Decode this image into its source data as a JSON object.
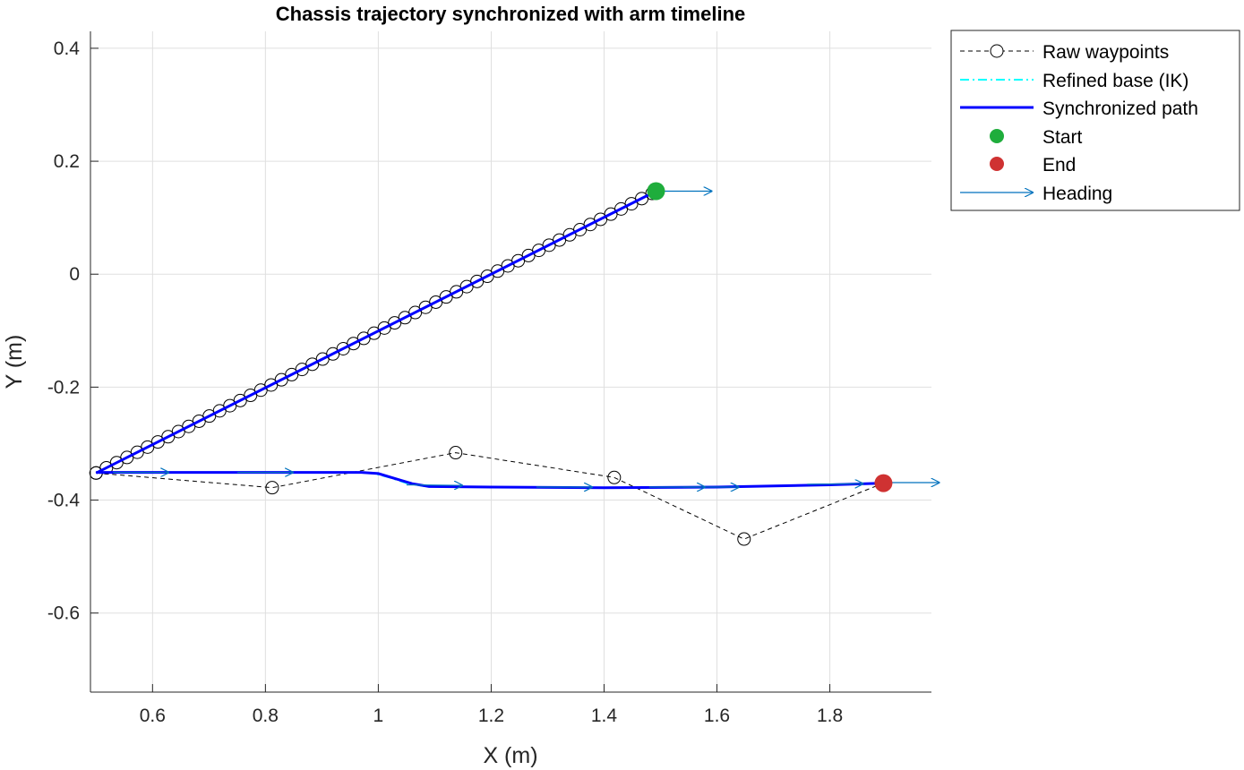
{
  "chart_data": {
    "type": "line",
    "title": "Chassis trajectory synchronized with arm timeline",
    "xlabel": "X (m)",
    "ylabel": "Y (m)",
    "xlim": [
      0.49,
      1.98
    ],
    "ylim": [
      -0.74,
      0.43
    ],
    "xticks": [
      0.6,
      0.8,
      1,
      1.2,
      1.4,
      1.6,
      1.8
    ],
    "xtick_labels": [
      "0.6",
      "0.8",
      "1",
      "1.2",
      "1.4",
      "1.6",
      "1.8"
    ],
    "yticks": [
      0.4,
      0.2,
      0,
      -0.2,
      -0.4,
      -0.6
    ],
    "ytick_labels": [
      "0.4",
      "0.2",
      "0",
      "-0.2",
      "-0.4",
      "-0.6"
    ],
    "grid": true,
    "legend_position": "outside-top-right",
    "legend": [
      "Raw waypoints",
      "Refined base (IK)",
      "Synchronized path",
      "Start",
      "End",
      "Heading"
    ],
    "colors": {
      "raw": "#000000",
      "refined": "#00ffff",
      "synchronized": "#0000ff",
      "start": "#1fad3c",
      "end": "#cf3232",
      "heading": "#0072bd",
      "grid": "#dfdfdf",
      "axis": "#262626"
    },
    "series": [
      {
        "name": "Raw waypoints",
        "style": "dashed-black-circles",
        "segments": [
          {
            "line": "line",
            "x0": 0.5,
            "y0": -0.352,
            "x1": 1.485,
            "y1": 0.143,
            "count": 55
          },
          {
            "line": "points",
            "x": [
              0.5,
              0.812,
              1.137,
              1.418,
              1.648,
              1.895
            ],
            "y": [
              -0.352,
              -0.378,
              -0.316,
              -0.36,
              -0.469,
              -0.37
            ]
          }
        ]
      },
      {
        "name": "Refined base (IK)",
        "style": "cyan-dashdot",
        "x": [
          0.5,
          0.8,
          0.95,
          0.99,
          1.02,
          1.05,
          1.08,
          1.2,
          1.4,
          1.6,
          1.8,
          1.895
        ],
        "y": [
          -0.351,
          -0.351,
          -0.351,
          -0.352,
          -0.36,
          -0.37,
          -0.375,
          -0.377,
          -0.378,
          -0.377,
          -0.373,
          -0.37
        ]
      },
      {
        "name": "Synchronized path",
        "style": "blue-solid",
        "segments": [
          {
            "x": [
              0.5,
              1.492
            ],
            "y": [
              -0.352,
              0.147
            ]
          },
          {
            "x": [
              0.5,
              0.8,
              0.97,
              1.0,
              1.03,
              1.06,
              1.09,
              1.2,
              1.4,
              1.6,
              1.8,
              1.895
            ],
            "y": [
              -0.351,
              -0.351,
              -0.351,
              -0.353,
              -0.362,
              -0.371,
              -0.376,
              -0.377,
              -0.378,
              -0.377,
              -0.373,
              -0.37
            ]
          }
        ]
      },
      {
        "name": "Start",
        "style": "green-dot",
        "x": [
          1.492
        ],
        "y": [
          0.147
        ]
      },
      {
        "name": "End",
        "style": "red-dot",
        "x": [
          1.895
        ],
        "y": [
          -0.37
        ]
      },
      {
        "name": "Heading",
        "style": "blue-arrows",
        "arrows": [
          {
            "x": 1.492,
            "y": 0.147,
            "dx": 0.1,
            "dy": 0
          },
          {
            "x": 0.53,
            "y": -0.351,
            "dx": 0.1,
            "dy": 0
          },
          {
            "x": 0.75,
            "y": -0.351,
            "dx": 0.1,
            "dy": 0
          },
          {
            "x": 1.05,
            "y": -0.373,
            "dx": 0.1,
            "dy": -0.001
          },
          {
            "x": 1.28,
            "y": -0.377,
            "dx": 0.1,
            "dy": 0
          },
          {
            "x": 1.48,
            "y": -0.377,
            "dx": 0.1,
            "dy": 0
          },
          {
            "x": 1.54,
            "y": -0.377,
            "dx": 0.1,
            "dy": 0
          },
          {
            "x": 1.76,
            "y": -0.372,
            "dx": 0.1,
            "dy": 0.001
          },
          {
            "x": 1.895,
            "y": -0.369,
            "dx": 0.1,
            "dy": 0
          }
        ]
      }
    ]
  }
}
